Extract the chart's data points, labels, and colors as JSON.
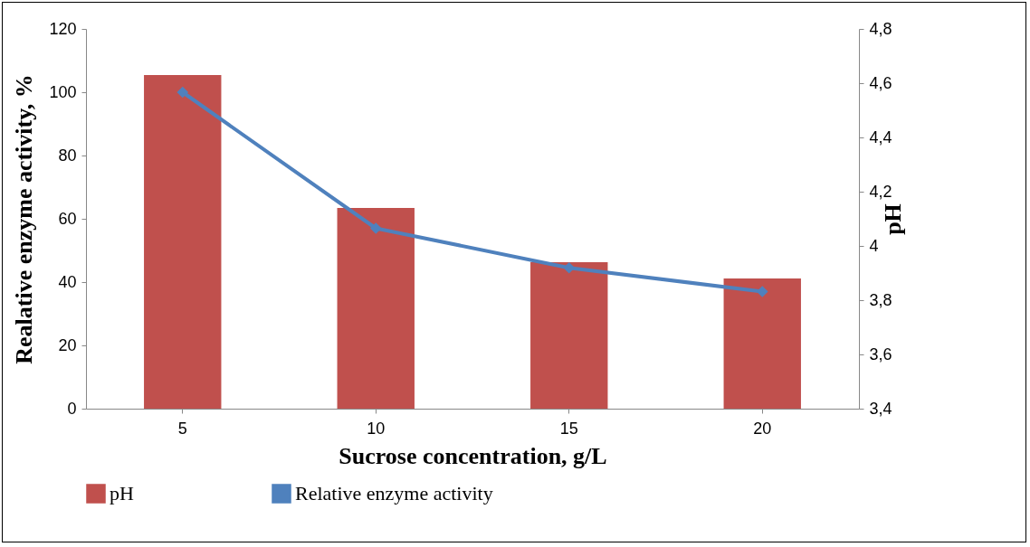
{
  "chart_data": {
    "type": "bar",
    "xlabel": "Sucrose concentration, g/L",
    "ylabel": "Realative enzyme activity, %",
    "y2label": "pH",
    "categories": [
      "5",
      "10",
      "15",
      "20"
    ],
    "series": [
      {
        "name": "pH",
        "axis": "y2",
        "color": "#c0504d",
        "values": [
          4.63,
          4.14,
          3.94,
          3.88
        ]
      },
      {
        "name": "Relative enzyme activity",
        "type": "line",
        "color": "#4f81bd",
        "values": [
          100,
          57,
          44.5,
          37
        ]
      }
    ],
    "ylim": [
      0,
      120
    ],
    "yticks": [
      0,
      20,
      40,
      60,
      80,
      100,
      120
    ],
    "y2lim": [
      3.4,
      4.8
    ],
    "y2ticks": [
      {
        "value": 3.4,
        "label": "3,4"
      },
      {
        "value": 3.6,
        "label": "3,6"
      },
      {
        "value": 3.8,
        "label": "3,8"
      },
      4,
      {
        "value": 4.2,
        "label": "4,2"
      },
      {
        "value": 4.4,
        "label": "4,4"
      },
      {
        "value": 4.6,
        "label": "4,6"
      },
      {
        "value": 4.8,
        "label": "4,8"
      }
    ],
    "marker": "diamond",
    "legend": "bottom",
    "grid": false
  }
}
